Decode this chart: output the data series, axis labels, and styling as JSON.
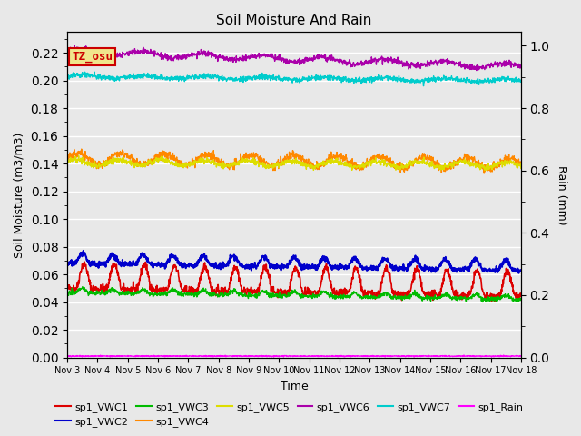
{
  "title": "Soil Moisture And Rain",
  "xlabel": "Time",
  "ylabel_left": "Soil Moisture (m3/m3)",
  "ylabel_right": "Rain (mm)",
  "ylim_left": [
    0.0,
    0.235
  ],
  "ylim_right": [
    0.0,
    1.044
  ],
  "background_color": "#e8e8e8",
  "plot_bg_color": "#e8e8e8",
  "grid_color": "#ffffff",
  "annotation_text": "TZ_osu",
  "annotation_bg": "#f0e68c",
  "annotation_border": "#cc0000",
  "tick_labels": [
    "Nov 3",
    "Nov 4",
    "Nov 5",
    "Nov 6",
    "Nov 7",
    "Nov 8",
    "Nov 9",
    "Nov 10",
    "Nov 11",
    "Nov 12",
    "Nov 13",
    "Nov 14",
    "Nov 15",
    "Nov 16",
    "Nov 17",
    "Nov 18"
  ],
  "colors": {
    "sp1_VWC1": "#dd0000",
    "sp1_VWC2": "#0000cc",
    "sp1_VWC3": "#00bb00",
    "sp1_VWC4": "#ff8800",
    "sp1_VWC5": "#dddd00",
    "sp1_VWC6": "#aa00aa",
    "sp1_VWC7": "#00cccc",
    "sp1_Rain": "#ff00ff"
  },
  "legend_order": [
    "sp1_VWC1",
    "sp1_VWC2",
    "sp1_VWC3",
    "sp1_VWC4",
    "sp1_VWC5",
    "sp1_VWC6",
    "sp1_VWC7",
    "sp1_Rain"
  ]
}
